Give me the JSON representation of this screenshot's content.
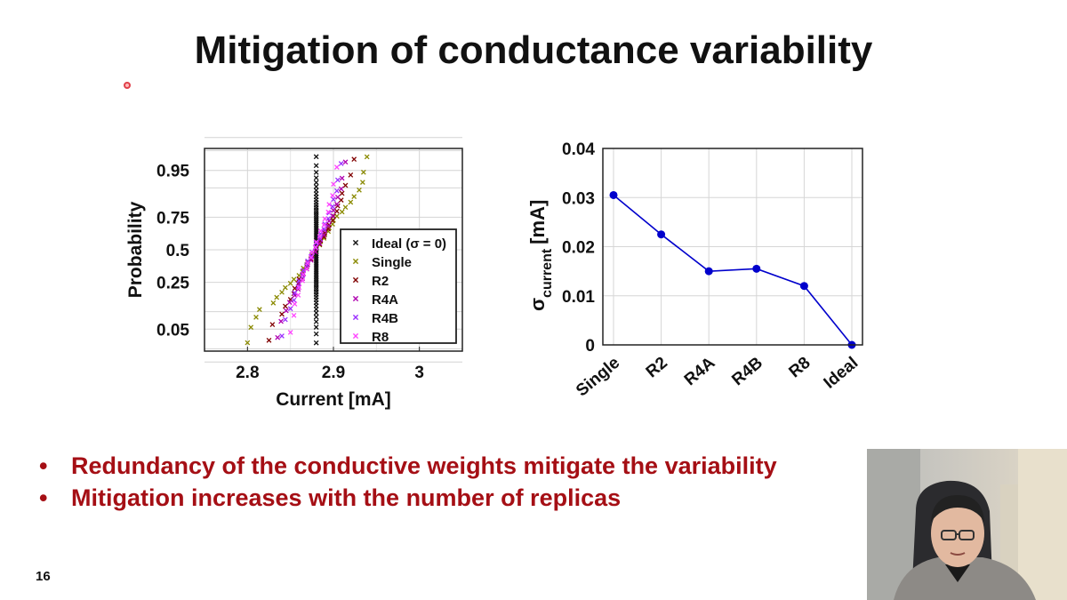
{
  "slide": {
    "title": "Mitigation of conductance variability",
    "bullets": [
      "Redundancy of the conductive weights mitigate the variability",
      "Mitigation increases with the number of replicas"
    ],
    "slide_number": "16",
    "colors": {
      "bullet_text": "#a50f15",
      "title_text": "#111111"
    }
  },
  "chart_data": [
    {
      "type": "scatter",
      "subtype": "normal-probability-plot",
      "xlabel": "Current [mA]",
      "ylabel": "Probability",
      "xlim": [
        2.75,
        3.05
      ],
      "xticks": [
        2.8,
        2.9,
        3
      ],
      "xtick_labels": [
        "2.8",
        "2.9",
        "3"
      ],
      "yticks": [
        0.05,
        0.25,
        0.5,
        0.75,
        0.95
      ],
      "ytick_labels": [
        "0.05",
        "0.25",
        "0.5",
        "0.75",
        "0.95"
      ],
      "grid": true,
      "legend_position": "bottom-right",
      "marker": "x",
      "series": [
        {
          "name": "Ideal (σ = 0)",
          "color": "#111111",
          "x": [
            2.878,
            2.879,
            2.88,
            2.881,
            2.882
          ]
        },
        {
          "name": "Single",
          "color": "#8a8a00",
          "x": [
            2.8,
            2.81,
            2.83,
            2.84,
            2.85,
            2.86,
            2.865,
            2.87,
            2.875,
            2.88,
            2.885,
            2.89,
            2.895,
            2.9,
            2.91,
            2.92,
            2.93,
            2.935
          ]
        },
        {
          "name": "R2",
          "color": "#800000",
          "x": [
            2.825,
            2.84,
            2.85,
            2.855,
            2.86,
            2.865,
            2.87,
            2.875,
            2.88,
            2.885,
            2.89,
            2.895,
            2.9,
            2.905,
            2.91,
            2.92
          ]
        },
        {
          "name": "R4A",
          "color": "#b000b0",
          "x": [
            2.835,
            2.845,
            2.855,
            2.86,
            2.865,
            2.87,
            2.875,
            2.88,
            2.885,
            2.89,
            2.895,
            2.9,
            2.905,
            2.91
          ]
        },
        {
          "name": "R4B",
          "color": "#9b30ff",
          "x": [
            2.84,
            2.85,
            2.855,
            2.86,
            2.865,
            2.87,
            2.875,
            2.88,
            2.885,
            2.89,
            2.895,
            2.9,
            2.905
          ]
        },
        {
          "name": "R8",
          "color": "#ff44ff",
          "x": [
            2.85,
            2.855,
            2.86,
            2.865,
            2.87,
            2.875,
            2.88,
            2.885,
            2.89,
            2.895,
            2.9
          ]
        }
      ]
    },
    {
      "type": "line",
      "categories": [
        "Single",
        "R2",
        "R4A",
        "R4B",
        "R8",
        "Ideal"
      ],
      "values": [
        0.0305,
        0.0225,
        0.015,
        0.0155,
        0.012,
        0
      ],
      "ylabel": "σ",
      "ylabel_subscript": "current",
      "ylabel_unit": "[mA]",
      "ylim": [
        0,
        0.04
      ],
      "yticks": [
        0,
        0.01,
        0.02,
        0.03,
        0.04
      ],
      "ytick_labels": [
        "0",
        "0.01",
        "0.02",
        "0.03",
        "0.04"
      ],
      "grid": true,
      "color": "#0000cc"
    }
  ]
}
